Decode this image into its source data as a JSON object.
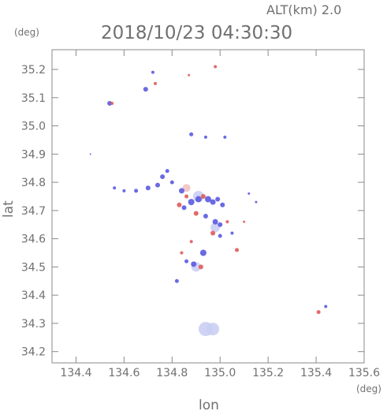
{
  "header": {
    "altitude_label": "ALT(km)  2.0",
    "timestamp": "2018/10/23 04:30:30"
  },
  "chart_data": {
    "type": "scatter",
    "xlabel": "lon",
    "ylabel": "lat",
    "x_unit": "(deg)",
    "y_unit": "(deg)",
    "xlim": [
      134.3,
      135.6
    ],
    "ylim": [
      34.16,
      35.27
    ],
    "x_ticks": [
      "134.4",
      "134.6",
      "134.8",
      "135.0",
      "135.2",
      "135.4",
      "135.6"
    ],
    "y_ticks": [
      "35.2",
      "35.1",
      "35.0",
      "34.9",
      "34.8",
      "34.7",
      "34.6",
      "34.5",
      "34.4",
      "34.3",
      "34.2"
    ],
    "grid": false,
    "colors": {
      "positive": "#e05a5a",
      "negative": "#5a5ae0",
      "pale_negative": "#c8cdf2",
      "pale_positive": "#f0c0c0"
    },
    "points": [
      {
        "lon": 134.54,
        "lat": 35.08,
        "sign": "neg",
        "size": 3
      },
      {
        "lon": 134.55,
        "lat": 35.08,
        "sign": "pos",
        "size": 2
      },
      {
        "lon": 134.69,
        "lat": 35.13,
        "sign": "neg",
        "size": 3
      },
      {
        "lon": 134.72,
        "lat": 35.19,
        "sign": "neg",
        "size": 2
      },
      {
        "lon": 134.73,
        "lat": 35.15,
        "sign": "pos",
        "size": 2
      },
      {
        "lon": 134.87,
        "lat": 35.18,
        "sign": "pos",
        "size": 1.5
      },
      {
        "lon": 134.98,
        "lat": 35.21,
        "sign": "pos",
        "size": 2
      },
      {
        "lon": 134.88,
        "lat": 34.97,
        "sign": "neg",
        "size": 2.5
      },
      {
        "lon": 134.94,
        "lat": 34.96,
        "sign": "neg",
        "size": 2
      },
      {
        "lon": 135.02,
        "lat": 34.96,
        "sign": "neg",
        "size": 2
      },
      {
        "lon": 134.46,
        "lat": 34.9,
        "sign": "neg",
        "size": 1
      },
      {
        "lon": 134.56,
        "lat": 34.78,
        "sign": "neg",
        "size": 2
      },
      {
        "lon": 134.6,
        "lat": 34.77,
        "sign": "neg",
        "size": 2
      },
      {
        "lon": 134.65,
        "lat": 34.77,
        "sign": "neg",
        "size": 2.5
      },
      {
        "lon": 134.7,
        "lat": 34.78,
        "sign": "neg",
        "size": 3
      },
      {
        "lon": 134.74,
        "lat": 34.79,
        "sign": "neg",
        "size": 3
      },
      {
        "lon": 134.76,
        "lat": 34.82,
        "sign": "neg",
        "size": 3
      },
      {
        "lon": 134.78,
        "lat": 34.84,
        "sign": "neg",
        "size": 2.5
      },
      {
        "lon": 134.8,
        "lat": 34.8,
        "sign": "neg",
        "size": 2.5
      },
      {
        "lon": 134.84,
        "lat": 34.77,
        "sign": "neg",
        "size": 3.5
      },
      {
        "lon": 134.86,
        "lat": 34.75,
        "sign": "pos",
        "size": 2.5
      },
      {
        "lon": 134.88,
        "lat": 34.73,
        "sign": "neg",
        "size": 4
      },
      {
        "lon": 134.91,
        "lat": 34.74,
        "sign": "neg",
        "size": 4
      },
      {
        "lon": 134.93,
        "lat": 34.75,
        "sign": "pos",
        "size": 3
      },
      {
        "lon": 134.95,
        "lat": 34.74,
        "sign": "neg",
        "size": 4
      },
      {
        "lon": 134.97,
        "lat": 34.73,
        "sign": "neg",
        "size": 3.5
      },
      {
        "lon": 134.99,
        "lat": 34.74,
        "sign": "neg",
        "size": 3
      },
      {
        "lon": 135.01,
        "lat": 34.72,
        "sign": "neg",
        "size": 3
      },
      {
        "lon": 134.83,
        "lat": 34.72,
        "sign": "pos",
        "size": 3
      },
      {
        "lon": 134.85,
        "lat": 34.71,
        "sign": "neg",
        "size": 3
      },
      {
        "lon": 134.9,
        "lat": 34.69,
        "sign": "pos",
        "size": 3
      },
      {
        "lon": 134.94,
        "lat": 34.68,
        "sign": "neg",
        "size": 3
      },
      {
        "lon": 134.98,
        "lat": 34.66,
        "sign": "neg",
        "size": 3.5
      },
      {
        "lon": 135.0,
        "lat": 34.65,
        "sign": "neg",
        "size": 3
      },
      {
        "lon": 135.03,
        "lat": 34.66,
        "sign": "pos",
        "size": 2
      },
      {
        "lon": 134.97,
        "lat": 34.62,
        "sign": "pos",
        "size": 3
      },
      {
        "lon": 135.0,
        "lat": 34.61,
        "sign": "neg",
        "size": 2.5
      },
      {
        "lon": 135.05,
        "lat": 34.62,
        "sign": "neg",
        "size": 2
      },
      {
        "lon": 135.07,
        "lat": 34.56,
        "sign": "pos",
        "size": 2.5
      },
      {
        "lon": 134.88,
        "lat": 34.59,
        "sign": "pos",
        "size": 2
      },
      {
        "lon": 134.84,
        "lat": 34.55,
        "sign": "pos",
        "size": 2
      },
      {
        "lon": 134.93,
        "lat": 34.55,
        "sign": "neg",
        "size": 4
      },
      {
        "lon": 134.89,
        "lat": 34.51,
        "sign": "neg",
        "size": 3.5
      },
      {
        "lon": 134.92,
        "lat": 34.5,
        "sign": "pos",
        "size": 3
      },
      {
        "lon": 134.86,
        "lat": 34.52,
        "sign": "neg",
        "size": 2.5
      },
      {
        "lon": 134.82,
        "lat": 34.45,
        "sign": "neg",
        "size": 2.5
      },
      {
        "lon": 135.12,
        "lat": 34.76,
        "sign": "neg",
        "size": 1.5
      },
      {
        "lon": 135.15,
        "lat": 34.73,
        "sign": "neg",
        "size": 1.5
      },
      {
        "lon": 135.1,
        "lat": 34.66,
        "sign": "pos",
        "size": 1.5
      },
      {
        "lon": 135.41,
        "lat": 34.34,
        "sign": "pos",
        "size": 2.5
      },
      {
        "lon": 135.44,
        "lat": 34.36,
        "sign": "neg",
        "size": 2
      },
      {
        "lon": 134.94,
        "lat": 34.28,
        "sign": "pale_neg",
        "size": 9
      },
      {
        "lon": 134.97,
        "lat": 34.28,
        "sign": "pale_neg",
        "size": 8
      },
      {
        "lon": 134.9,
        "lat": 34.5,
        "sign": "pale_neg",
        "size": 6
      },
      {
        "lon": 134.91,
        "lat": 34.75,
        "sign": "pale_neg",
        "size": 7
      },
      {
        "lon": 134.98,
        "lat": 34.64,
        "sign": "pale_neg",
        "size": 6
      },
      {
        "lon": 134.86,
        "lat": 34.78,
        "sign": "pale_pos",
        "size": 5
      }
    ]
  }
}
